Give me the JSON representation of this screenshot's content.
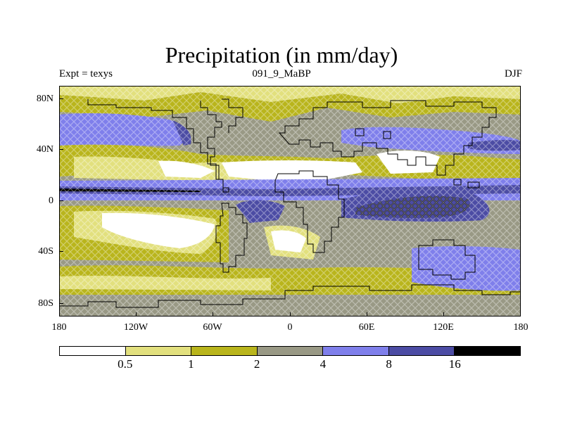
{
  "title": "Precipitation (in mm/day)",
  "subtitle_left": "Expt = texys",
  "subtitle_center": "091_9_MaBP",
  "subtitle_right": "DJF",
  "lat_labels": [
    "80N",
    "40N",
    "0",
    "40S",
    "80S"
  ],
  "lon_labels": [
    "180",
    "120W",
    "60W",
    "0",
    "60E",
    "120E",
    "180"
  ],
  "colorbar": {
    "colors": [
      "#ffffff",
      "#e2e07e",
      "#b9b51c",
      "#999985",
      "#7f7feb",
      "#4c4ca4",
      "#000000"
    ],
    "labels": [
      "0.5",
      "1",
      "2",
      "4",
      "8",
      "16"
    ]
  },
  "colors": {
    "coastline": "#000000",
    "ocean_background": "#999985"
  }
}
